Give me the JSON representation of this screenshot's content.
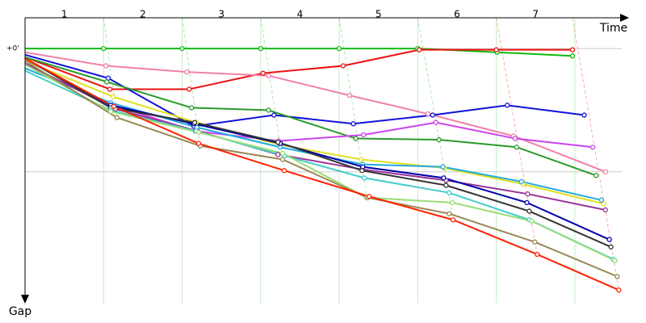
{
  "chart_data": {
    "type": "line",
    "x_label": "Time",
    "y_label": "Gap",
    "laps": [
      "1",
      "2",
      "3",
      "4",
      "5",
      "6",
      "7"
    ],
    "xlim": [
      0,
      7.68
    ],
    "xticks": [
      1,
      2,
      3,
      4,
      5,
      6,
      7
    ],
    "ylim": [
      -0.25,
      2.07
    ],
    "y_inverted": true,
    "yticks": [
      {
        "value": 0,
        "label": "+0'"
      },
      {
        "value": 1,
        "label": null
      }
    ],
    "grid": true,
    "series": [
      {
        "color": "#11bb11",
        "x": [
          0,
          1,
          2,
          3,
          4,
          5,
          6.01,
          6.97
        ],
        "values": [
          0,
          0,
          0,
          0,
          0,
          0,
          0.03,
          0.06
        ]
      },
      {
        "color": "#ee1111",
        "x": [
          0,
          1.08,
          2.09,
          3.03,
          4.05,
          5.02,
          6.0,
          6.97
        ],
        "values": [
          0.07,
          0.33,
          0.33,
          0.2,
          0.14,
          0.01,
          0.01,
          0.01
        ]
      },
      {
        "color": "#f080a8",
        "x": [
          0,
          1.03,
          2.06,
          3.1,
          4.13,
          5.13,
          6.22,
          7.39
        ],
        "values": [
          0.03,
          0.14,
          0.19,
          0.22,
          0.38,
          0.53,
          0.71,
          1.0
        ]
      },
      {
        "color": "#1111dd",
        "x": [
          0,
          1.06,
          2.15,
          3.17,
          4.18,
          5.19,
          6.14,
          7.12
        ],
        "values": [
          0.05,
          0.24,
          0.63,
          0.54,
          0.61,
          0.54,
          0.46,
          0.54
        ]
      },
      {
        "color": "#2a9a2a",
        "x": [
          0,
          1.04,
          2.12,
          3.1,
          4.21,
          5.27,
          6.26,
          7.27
        ],
        "values": [
          0.07,
          0.27,
          0.48,
          0.5,
          0.73,
          0.74,
          0.8,
          1.03
        ]
      },
      {
        "color": "#cc44ee",
        "x": [
          0,
          1.12,
          2.17,
          3.23,
          4.31,
          5.23,
          6.24,
          7.23
        ],
        "values": [
          0.13,
          0.46,
          0.67,
          0.75,
          0.7,
          0.6,
          0.73,
          0.8
        ]
      },
      {
        "color": "#e0e020",
        "x": [
          0,
          1.12,
          2.18,
          3.24,
          4.28,
          5.34,
          6.34,
          7.37
        ],
        "values": [
          0.1,
          0.39,
          0.6,
          0.78,
          0.9,
          0.97,
          1.1,
          1.26
        ]
      },
      {
        "color": "#22aadd",
        "x": [
          0,
          1.09,
          2.19,
          3.25,
          4.3,
          5.32,
          6.32,
          7.34
        ],
        "values": [
          0.16,
          0.44,
          0.64,
          0.8,
          0.94,
          0.96,
          1.08,
          1.23
        ]
      },
      {
        "color": "#993399",
        "x": [
          0,
          1.15,
          2.2,
          3.22,
          4.29,
          5.36,
          6.4,
          7.39
        ],
        "values": [
          0.12,
          0.49,
          0.67,
          0.86,
          0.98,
          1.07,
          1.18,
          1.31
        ]
      },
      {
        "color": "#0000aa",
        "x": [
          0,
          1.09,
          2.15,
          3.25,
          4.3,
          5.33,
          6.39,
          7.44
        ],
        "values": [
          0.08,
          0.46,
          0.61,
          0.77,
          0.96,
          1.05,
          1.25,
          1.55
        ]
      },
      {
        "color": "#333333",
        "x": [
          0,
          1.09,
          2.16,
          3.22,
          4.29,
          5.36,
          6.42,
          7.46
        ],
        "values": [
          0.08,
          0.48,
          0.6,
          0.76,
          0.99,
          1.11,
          1.32,
          1.61
        ]
      },
      {
        "color": "#44cccc",
        "x": [
          0,
          1.09,
          2.18,
          3.3,
          4.32,
          5.4,
          6.42,
          7.49
        ],
        "values": [
          0.18,
          0.5,
          0.67,
          0.87,
          1.05,
          1.17,
          1.39,
          1.71
        ]
      },
      {
        "color": "#99dd77",
        "x": [
          0,
          1.09,
          2.21,
          3.28,
          4.35,
          5.44,
          6.45,
          7.51
        ],
        "values": [
          0.13,
          0.51,
          0.68,
          0.85,
          1.21,
          1.25,
          1.4,
          1.72
        ]
      },
      {
        "color": "#998855",
        "x": [
          0,
          1.17,
          2.23,
          3.28,
          4.36,
          5.4,
          6.49,
          7.54
        ],
        "values": [
          0.1,
          0.56,
          0.79,
          0.9,
          1.21,
          1.34,
          1.57,
          1.85
        ]
      },
      {
        "color": "#ff2200",
        "x": [
          0,
          1.13,
          2.21,
          3.3,
          4.38,
          5.45,
          6.52,
          7.56
        ],
        "values": [
          0.08,
          0.47,
          0.77,
          0.99,
          1.2,
          1.39,
          1.67,
          1.96
        ]
      }
    ]
  }
}
